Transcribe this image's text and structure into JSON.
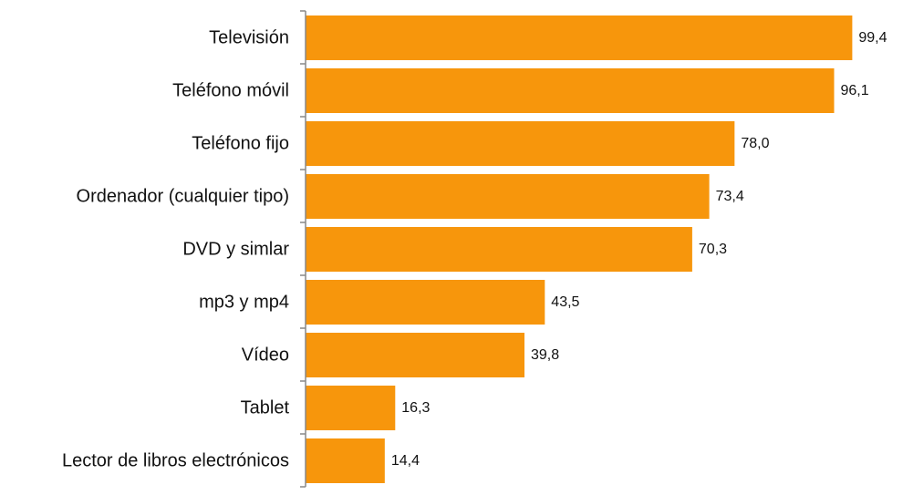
{
  "chart_data": {
    "type": "bar",
    "orientation": "horizontal",
    "title": "",
    "xlabel": "",
    "ylabel": "",
    "categories": [
      "Televisión",
      "Teléfono móvil",
      "Teléfono fijo",
      "Ordenador (cualquier tipo)",
      "DVD y simlar",
      "mp3 y mp4",
      "Vídeo",
      "Tablet",
      "Lector de libros electrónicos"
    ],
    "values": [
      99.4,
      96.1,
      78.0,
      73.4,
      70.3,
      43.5,
      39.8,
      16.3,
      14.4
    ],
    "value_labels": [
      "99,4",
      "96,1",
      "78,0",
      "73,4",
      "70,3",
      "43,5",
      "39,8",
      "16,3",
      "14,4"
    ],
    "xlim": [
      0,
      100
    ],
    "grid": false,
    "legend": "none",
    "bar_color": "#F7960C",
    "axis_color": "#888888"
  }
}
